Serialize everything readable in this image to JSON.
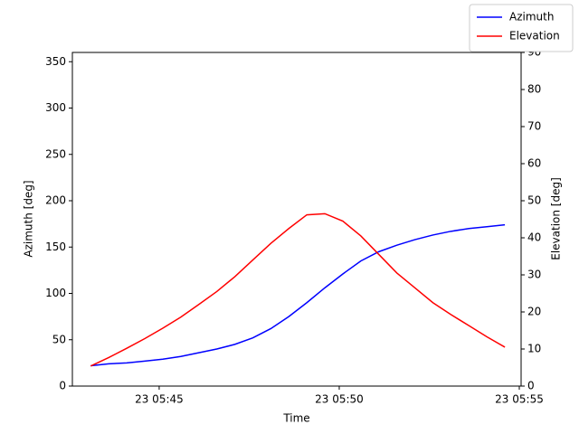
{
  "chart_data": {
    "type": "line",
    "xlabel": "Time",
    "ylabel": "Azimuth [deg]",
    "y2label": "Elevation [deg]",
    "x": [
      43.1,
      43.6,
      44.1,
      44.6,
      45.1,
      45.6,
      46.1,
      46.6,
      47.1,
      47.6,
      48.1,
      48.6,
      49.1,
      49.6,
      50.1,
      50.6,
      51.1,
      51.6,
      52.1,
      52.6,
      53.1,
      53.6,
      54.1,
      54.6
    ],
    "xlim": [
      42.59,
      55.05
    ],
    "xticks": [
      {
        "value": 45,
        "label": "23 05:45"
      },
      {
        "value": 50,
        "label": "23 05:50"
      },
      {
        "value": 55,
        "label": "23 05:55"
      }
    ],
    "ylim": [
      0,
      360
    ],
    "yticks": [
      0,
      50,
      100,
      150,
      200,
      250,
      300,
      350
    ],
    "y2lim": [
      0,
      90
    ],
    "y2ticks": [
      0,
      10,
      20,
      30,
      40,
      50,
      60,
      70,
      80,
      90
    ],
    "legend": "upper right",
    "series": [
      {
        "name": "Azimuth",
        "color": "#0000ff",
        "values": [
          22,
          24,
          25,
          27,
          29,
          32,
          36,
          40,
          45,
          52,
          62,
          75,
          90,
          106,
          121,
          135,
          145,
          152,
          158,
          163,
          167,
          170,
          172,
          174
        ]
      },
      {
        "name": "Elevation",
        "color": "#ff0000",
        "axis": "y2",
        "values": [
          5.4,
          7.7,
          10.2,
          12.8,
          15.6,
          18.6,
          22,
          25.5,
          29.5,
          34,
          38.5,
          42.5,
          46.2,
          46.5,
          44.5,
          40.5,
          35.5,
          30.5,
          26.5,
          22.5,
          19.3,
          16.3,
          13.3,
          10.5
        ]
      }
    ]
  }
}
